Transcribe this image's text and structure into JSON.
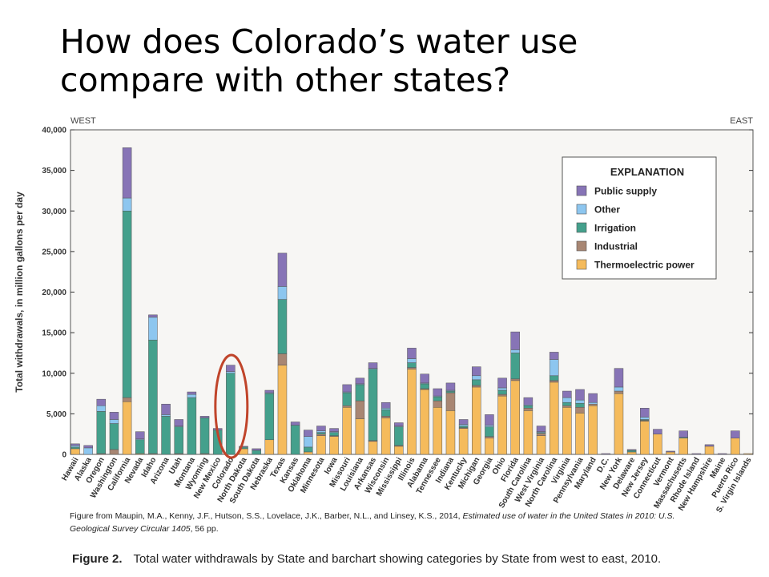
{
  "slide": {
    "title": "How does Colorado’s water use compare with other states?"
  },
  "figure": {
    "credit_prefix": "Figure from Maupin, M.A., Kenny, J.F., Hutson, S.S., Lovelace, J.K., Barber, N.L., and Linsey, K.S., 2014, ",
    "credit_italic": "Estimated use of water in the United States in 2010: U.S. Geological Survey Circular 1405",
    "credit_suffix": ", 56 pp.",
    "caption_label": "Figure 2.",
    "caption_text": "Total water withdrawals by State and barchart showing categories by State from west to east, 2010."
  },
  "chart_data": {
    "type": "bar",
    "stacked": true,
    "highlight": "Colorado",
    "highlight_color": "#c0442a",
    "corner_labels": {
      "left": "WEST",
      "right": "EAST"
    },
    "xlabel": "",
    "ylabel": "Total withdrawals, in million gallons per day",
    "ylim": [
      0,
      40000
    ],
    "yticks": [
      0,
      5000,
      10000,
      15000,
      20000,
      25000,
      30000,
      35000,
      40000
    ],
    "ytick_labels": [
      "0",
      "5,000",
      "10,000",
      "15,000",
      "20,000",
      "25,000",
      "30,000",
      "35,000",
      "40,000"
    ],
    "legend_title": "EXPLANATION",
    "legend_position": "top-right",
    "categories": [
      "Hawaii",
      "Alaska",
      "Oregon",
      "Washington",
      "California",
      "Nevada",
      "Idaho",
      "Arizona",
      "Utah",
      "Montana",
      "Wyoming",
      "New Mexico",
      "Colorado",
      "North Dakota",
      "South Dakota",
      "Nebraska",
      "Texas",
      "Kansas",
      "Oklahoma",
      "Minnesota",
      "Iowa",
      "Missouri",
      "Louisiana",
      "Arkansas",
      "Wisconsin",
      "Mississippi",
      "Illinois",
      "Alabama",
      "Tennessee",
      "Indiana",
      "Kentucky",
      "Michigan",
      "Georgia",
      "Ohio",
      "Florida",
      "South Carolina",
      "West Virginia",
      "North Carolina",
      "Virginia",
      "Pennsylvania",
      "Maryland",
      "D.C.",
      "New York",
      "Delaware",
      "New Jersey",
      "Connecticut",
      "Vermont",
      "Massachusetts",
      "Rhode Island",
      "New Hampshire",
      "Maine",
      "Puerto Rico",
      "U.S. Virgin Islands"
    ],
    "series": [
      {
        "name": "Thermoelectric power",
        "color": "#f5bb5c",
        "values": [
          700,
          0,
          0,
          0,
          6500,
          100,
          0,
          0,
          0,
          0,
          0,
          0,
          0,
          700,
          0,
          1800,
          11000,
          0,
          300,
          2300,
          2200,
          5800,
          4400,
          1600,
          4500,
          1000,
          10500,
          8000,
          5800,
          5400,
          3200,
          8300,
          2000,
          7200,
          9100,
          5400,
          2300,
          8900,
          5800,
          5100,
          6000,
          0,
          7500,
          300,
          4100,
          2500,
          300,
          2000,
          0,
          1000,
          0,
          2000,
          100
        ]
      },
      {
        "name": "Industrial",
        "color": "#a88673",
        "values": [
          0,
          0,
          100,
          600,
          500,
          0,
          100,
          0,
          100,
          0,
          100,
          0,
          0,
          0,
          0,
          0,
          1400,
          0,
          0,
          200,
          100,
          200,
          2200,
          100,
          200,
          100,
          200,
          100,
          800,
          2200,
          100,
          200,
          200,
          200,
          200,
          300,
          300,
          200,
          200,
          700,
          200,
          0,
          300,
          0,
          100,
          0,
          0,
          0,
          0,
          0,
          0,
          0,
          0
        ]
      },
      {
        "name": "Irrigation",
        "color": "#44a08c",
        "values": [
          200,
          0,
          5200,
          3200,
          23000,
          1700,
          14000,
          4700,
          3300,
          7000,
          4400,
          3000,
          10000,
          200,
          500,
          5700,
          6700,
          3600,
          600,
          200,
          400,
          1600,
          2000,
          8800,
          800,
          2300,
          600,
          600,
          500,
          200,
          200,
          700,
          1200,
          500,
          3200,
          300,
          100,
          600,
          400,
          500,
          0,
          0,
          0,
          200,
          100,
          0,
          0,
          100,
          0,
          0,
          0,
          0,
          0
        ]
      },
      {
        "name": "Other",
        "color": "#8dc6ef",
        "values": [
          200,
          800,
          700,
          500,
          1600,
          100,
          2800,
          200,
          100,
          400,
          0,
          0,
          200,
          0,
          0,
          100,
          1600,
          0,
          1300,
          200,
          100,
          100,
          100,
          100,
          200,
          100,
          500,
          100,
          100,
          100,
          200,
          500,
          200,
          300,
          400,
          100,
          100,
          2000,
          600,
          400,
          200,
          0,
          500,
          0,
          300,
          0,
          0,
          0,
          0,
          0,
          0,
          0,
          0
        ]
      },
      {
        "name": "Public supply",
        "color": "#8774b6",
        "values": [
          200,
          300,
          800,
          900,
          6200,
          900,
          300,
          1300,
          800,
          300,
          200,
          200,
          800,
          100,
          200,
          300,
          4100,
          400,
          800,
          600,
          400,
          900,
          700,
          700,
          700,
          400,
          1300,
          1100,
          900,
          900,
          600,
          1100,
          1300,
          1200,
          2200,
          900,
          700,
          900,
          800,
          1300,
          1100,
          100,
          2300,
          100,
          1100,
          600,
          100,
          800,
          100,
          200,
          100,
          900,
          0
        ]
      }
    ]
  }
}
